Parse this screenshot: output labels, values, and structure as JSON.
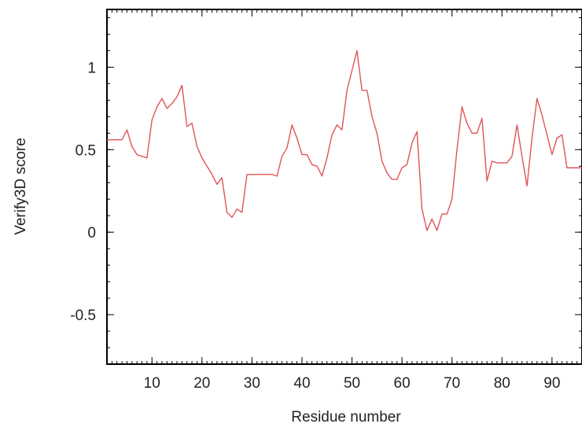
{
  "chart_data": {
    "type": "line",
    "title": "",
    "xlabel": "Residue number",
    "ylabel": "Verify3D score",
    "xlim": [
      1,
      96
    ],
    "ylim": [
      -0.8,
      1.35
    ],
    "x_ticks": [
      10,
      20,
      30,
      40,
      50,
      60,
      70,
      80,
      90
    ],
    "y_ticks": [
      -0.5,
      0,
      0.5,
      1
    ],
    "y_tick_labels": [
      "-0.5",
      "0",
      "0.5",
      "1"
    ],
    "grid": false,
    "legend": "none",
    "line_color": "#e05555",
    "series": [
      {
        "x": [
          1,
          2,
          3,
          4,
          5,
          6,
          7,
          8,
          9,
          10,
          11,
          12,
          13,
          14,
          15,
          16,
          17,
          18,
          19,
          20,
          21,
          22,
          23,
          24,
          25,
          26,
          27,
          28,
          29,
          30,
          31,
          32,
          33,
          34,
          35,
          36,
          37,
          38,
          39,
          40,
          41,
          42,
          43,
          44,
          45,
          46,
          47,
          48,
          49,
          50,
          51,
          52,
          53,
          54,
          55,
          56,
          57,
          58,
          59,
          60,
          61,
          62,
          63,
          64,
          65,
          66,
          67,
          68,
          69,
          70,
          71,
          72,
          73,
          74,
          75,
          76,
          77,
          78,
          79,
          80,
          81,
          82,
          83,
          84,
          85,
          86,
          87,
          88,
          89,
          90,
          91,
          92,
          93,
          94,
          95,
          96
        ],
        "values": [
          0.56,
          0.56,
          0.56,
          0.56,
          0.62,
          0.52,
          0.47,
          0.46,
          0.45,
          0.68,
          0.76,
          0.81,
          0.75,
          0.78,
          0.82,
          0.89,
          0.64,
          0.66,
          0.52,
          0.45,
          0.4,
          0.35,
          0.29,
          0.33,
          0.12,
          0.09,
          0.14,
          0.12,
          0.35,
          0.35,
          0.35,
          0.35,
          0.35,
          0.35,
          0.34,
          0.46,
          0.51,
          0.65,
          0.57,
          0.47,
          0.47,
          0.41,
          0.4,
          0.34,
          0.45,
          0.59,
          0.65,
          0.62,
          0.86,
          0.98,
          1.1,
          0.86,
          0.86,
          0.7,
          0.6,
          0.43,
          0.36,
          0.32,
          0.32,
          0.39,
          0.41,
          0.54,
          0.61,
          0.14,
          0.01,
          0.08,
          0.01,
          0.11,
          0.11,
          0.2,
          0.5,
          0.76,
          0.66,
          0.6,
          0.6,
          0.69,
          0.31,
          0.43,
          0.42,
          0.42,
          0.42,
          0.46,
          0.65,
          0.46,
          0.28,
          0.57,
          0.81,
          0.71,
          0.59,
          0.47,
          0.57,
          0.59,
          0.39,
          0.39,
          0.39,
          0.39
        ]
      }
    ]
  }
}
